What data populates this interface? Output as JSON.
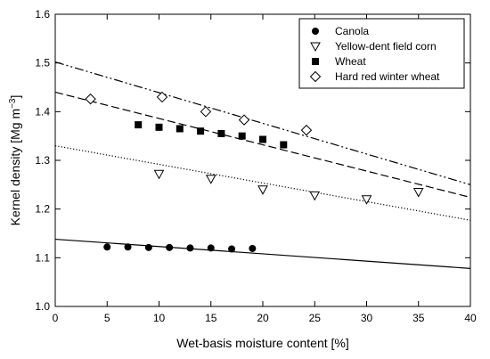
{
  "chart_data": {
    "type": "scatter",
    "title": "",
    "xlabel": "Wet-basis moisture content [%]",
    "ylabel_main": "Kernel density [Mg m",
    "ylabel_sup": "−3",
    "ylabel_close": "]",
    "xlim": [
      0,
      40
    ],
    "ylim": [
      1.0,
      1.6
    ],
    "xticks": [
      0,
      5,
      10,
      15,
      20,
      25,
      30,
      35,
      40
    ],
    "yticks": [
      1.0,
      1.1,
      1.2,
      1.3,
      1.4,
      1.5,
      1.6
    ],
    "xtick_labels": [
      "0",
      "5",
      "10",
      "15",
      "20",
      "25",
      "30",
      "35",
      "40"
    ],
    "ytick_labels": [
      "1.0",
      "1.1",
      "1.2",
      "1.3",
      "1.4",
      "1.5",
      "1.6"
    ],
    "grid": false,
    "legend_position": "top-right",
    "series": [
      {
        "name": "Canola",
        "marker": "filled-circle",
        "line_style": "solid",
        "x": [
          5,
          7,
          9,
          11,
          13,
          15,
          17,
          19
        ],
        "y": [
          1.122,
          1.122,
          1.121,
          1.121,
          1.12,
          1.12,
          1.118,
          1.119
        ],
        "fit": [
          [
            0,
            1.138
          ],
          [
            40,
            1.078
          ]
        ]
      },
      {
        "name": "Yellow-dent field corn",
        "marker": "open-triangle-down",
        "line_style": "dotted",
        "x": [
          10,
          15,
          20,
          25,
          30,
          35
        ],
        "y": [
          1.272,
          1.262,
          1.24,
          1.228,
          1.22,
          1.235
        ],
        "fit": [
          [
            0,
            1.33
          ],
          [
            40,
            1.177
          ]
        ]
      },
      {
        "name": "Wheat",
        "marker": "filled-square",
        "line_style": "dashed",
        "x": [
          8,
          10,
          12,
          14,
          16,
          18,
          20,
          22
        ],
        "y": [
          1.373,
          1.368,
          1.365,
          1.36,
          1.355,
          1.35,
          1.343,
          1.332
        ],
        "fit": [
          [
            0,
            1.44
          ],
          [
            40,
            1.224
          ]
        ]
      },
      {
        "name": "Hard red winter wheat",
        "marker": "open-diamond",
        "line_style": "dash-dot-dot",
        "x": [
          3.4,
          10.3,
          14.5,
          18.2,
          24.2
        ],
        "y": [
          1.426,
          1.43,
          1.4,
          1.383,
          1.362
        ],
        "fit": [
          [
            0,
            1.502
          ],
          [
            40,
            1.25
          ]
        ]
      }
    ]
  }
}
